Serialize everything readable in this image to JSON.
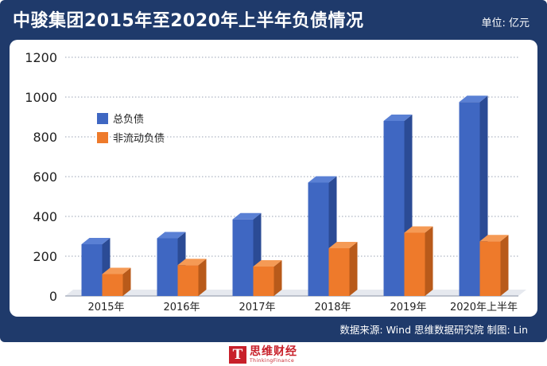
{
  "header": {
    "title": "中骏集团2015年至2020年上半年负债情况",
    "unit": "单位: 亿元"
  },
  "footer": {
    "source": "数据来源: Wind  思维数据研究院    制图: Lin"
  },
  "logo": {
    "mark": "T",
    "name": "思维财经",
    "sub": "ThinkingFinance"
  },
  "colors": {
    "total_front": "#3f67c2",
    "total_top": "#5a80d4",
    "total_side": "#2b4b95",
    "noncurrent_front": "#ee7a2b",
    "noncurrent_top": "#f59a55",
    "noncurrent_side": "#b85a1a"
  },
  "chart_data": {
    "type": "bar",
    "title": "中骏集团2015年至2020年上半年负债情况",
    "xlabel": "",
    "ylabel": "亿元",
    "ylim": [
      0,
      1200
    ],
    "yticks": [
      "0",
      "200",
      "400",
      "600",
      "800",
      "1000",
      "1200"
    ],
    "categories": [
      "2015年",
      "2016年",
      "2017年",
      "2018年",
      "2019年",
      "2020年上半年"
    ],
    "series": [
      {
        "name": "总负债",
        "values": [
          260,
          290,
          385,
          570,
          880,
          975
        ]
      },
      {
        "name": "非流动负债",
        "values": [
          110,
          155,
          148,
          240,
          318,
          275
        ]
      }
    ],
    "legend": "top-left"
  }
}
